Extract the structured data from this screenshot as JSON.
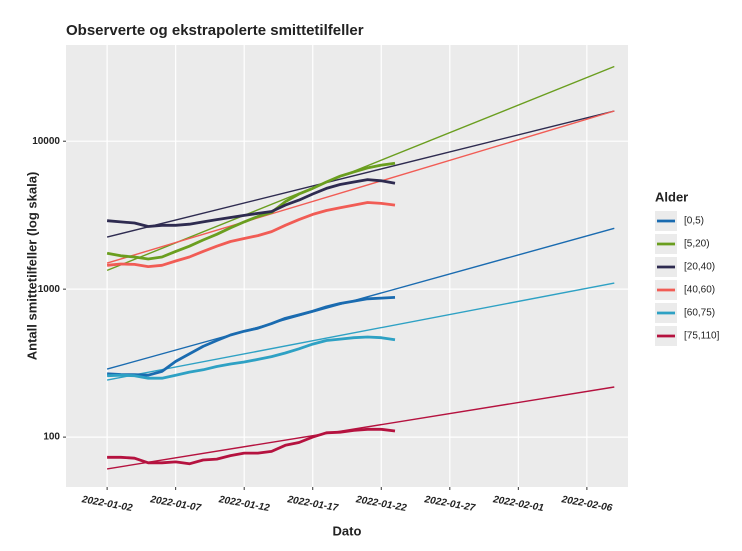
{
  "chart_data": {
    "type": "line",
    "title": "Observerte og ekstrapolerte smittetilfeller",
    "x_label": "Dato",
    "y_label": "Antall smittetilfeller (log skala)",
    "legend_title": "Alder",
    "legend": "right",
    "log_y": true,
    "grid": true,
    "x": [
      "2022-01-02",
      "2022-01-03",
      "2022-01-04",
      "2022-01-05",
      "2022-01-06",
      "2022-01-07",
      "2022-01-08",
      "2022-01-09",
      "2022-01-10",
      "2022-01-11",
      "2022-01-12",
      "2022-01-13",
      "2022-01-14",
      "2022-01-15",
      "2022-01-16",
      "2022-01-17",
      "2022-01-18",
      "2022-01-19",
      "2022-01-20",
      "2022-01-21",
      "2022-01-22",
      "2022-01-23"
    ],
    "trend_x": [
      "2022-01-02",
      "2022-02-08"
    ],
    "series": [
      {
        "name": "[0,5)",
        "color": "#1a6bb0",
        "values": [
          268,
          265,
          264,
          262,
          278,
          325,
          365,
          410,
          450,
          490,
          520,
          545,
          585,
          635,
          670,
          710,
          760,
          800,
          830,
          860,
          870,
          880
        ],
        "trend": [
          288,
          2580
        ]
      },
      {
        "name": "[5,20)",
        "color": "#6a9e1f",
        "values": [
          1750,
          1680,
          1650,
          1600,
          1650,
          1800,
          1950,
          2150,
          2350,
          2600,
          2850,
          3100,
          3300,
          3900,
          4400,
          4800,
          5300,
          5800,
          6200,
          6600,
          6900,
          7100
        ],
        "trend": [
          1340,
          32000
        ]
      },
      {
        "name": "[20,40)",
        "color": "#2e2b50",
        "values": [
          2900,
          2850,
          2800,
          2650,
          2700,
          2700,
          2750,
          2850,
          2950,
          3050,
          3150,
          3250,
          3350,
          3700,
          4000,
          4400,
          4800,
          5100,
          5300,
          5500,
          5400,
          5200
        ],
        "trend": [
          2250,
          16000
        ]
      },
      {
        "name": "[40,60)",
        "color": "#f15c55",
        "values": [
          1450,
          1480,
          1470,
          1420,
          1450,
          1550,
          1650,
          1800,
          1950,
          2100,
          2200,
          2300,
          2450,
          2700,
          2950,
          3200,
          3400,
          3550,
          3700,
          3850,
          3800,
          3700
        ],
        "trend": [
          1500,
          16000
        ]
      },
      {
        "name": "[60,75)",
        "color": "#2ea1c4",
        "values": [
          260,
          262,
          260,
          250,
          250,
          262,
          275,
          285,
          300,
          312,
          322,
          335,
          350,
          370,
          395,
          425,
          450,
          460,
          470,
          475,
          470,
          455
        ],
        "trend": [
          243,
          1100
        ]
      },
      {
        "name": "[75,110]",
        "color": "#b5123f",
        "values": [
          73,
          73,
          72,
          67,
          67,
          68,
          66,
          70,
          71,
          75,
          78,
          78,
          80,
          88,
          92,
          100,
          107,
          108,
          111,
          113,
          113,
          110
        ],
        "trend": [
          61,
          218
        ]
      }
    ],
    "xlim": [
      "2021-12-30",
      "2022-02-09"
    ],
    "xticks": [
      "2022-01-02",
      "2022-01-07",
      "2022-01-12",
      "2022-01-17",
      "2022-01-22",
      "2022-01-27",
      "2022-02-01",
      "2022-02-06"
    ],
    "ylim": [
      46,
      44700
    ],
    "yticks": [
      100,
      1000,
      10000
    ]
  }
}
